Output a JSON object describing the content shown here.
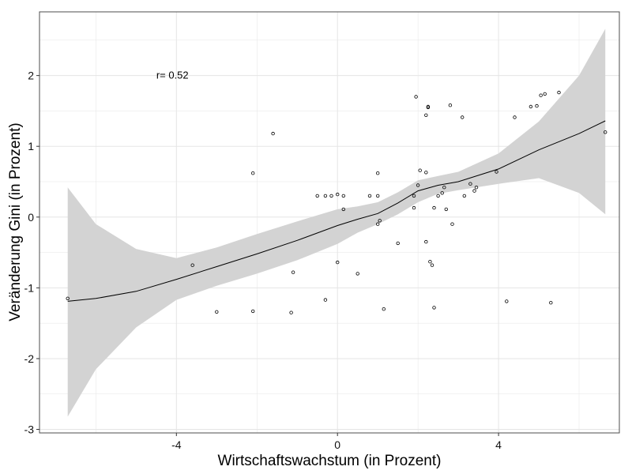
{
  "chart_data": {
    "type": "scatter",
    "xlabel": "Wirtschaftswachstum (in Prozent)",
    "ylabel": "Veränderung Gini (in Prozent)",
    "xlim": [
      -7.4,
      7.0
    ],
    "ylim": [
      -3.05,
      2.9
    ],
    "x_ticks": [
      -4,
      0,
      4
    ],
    "x_tick_labels": [
      "-4",
      "0",
      "4"
    ],
    "y_ticks": [
      -3,
      -2,
      -1,
      0,
      1,
      2
    ],
    "y_tick_labels": [
      "-3",
      "-2",
      "-1",
      "0",
      "1",
      "2"
    ],
    "grid": true,
    "annotation": {
      "text": "r= 0.52",
      "x": -4.5,
      "y": 2.0
    },
    "points": [
      {
        "x": -6.7,
        "y": -1.15
      },
      {
        "x": -3.6,
        "y": -0.68
      },
      {
        "x": -3.0,
        "y": -1.34
      },
      {
        "x": -2.1,
        "y": 0.62
      },
      {
        "x": -2.1,
        "y": -1.33
      },
      {
        "x": -1.6,
        "y": 1.18
      },
      {
        "x": -1.1,
        "y": -0.78
      },
      {
        "x": -1.15,
        "y": -1.35
      },
      {
        "x": -0.5,
        "y": 0.3
      },
      {
        "x": -0.3,
        "y": 0.3
      },
      {
        "x": -0.3,
        "y": -1.17
      },
      {
        "x": -0.15,
        "y": 0.3
      },
      {
        "x": 0.0,
        "y": 0.32
      },
      {
        "x": 0.0,
        "y": -0.64
      },
      {
        "x": 0.15,
        "y": 0.3
      },
      {
        "x": 0.15,
        "y": 0.11
      },
      {
        "x": 0.5,
        "y": -0.8
      },
      {
        "x": 0.8,
        "y": 0.3
      },
      {
        "x": 1.0,
        "y": 0.62
      },
      {
        "x": 1.0,
        "y": 0.3
      },
      {
        "x": 1.0,
        "y": -0.1
      },
      {
        "x": 1.05,
        "y": -0.05
      },
      {
        "x": 1.15,
        "y": -1.3
      },
      {
        "x": 1.5,
        "y": -0.37
      },
      {
        "x": 1.9,
        "y": 0.3
      },
      {
        "x": 1.9,
        "y": 0.13
      },
      {
        "x": 1.95,
        "y": 1.7
      },
      {
        "x": 2.0,
        "y": 0.45
      },
      {
        "x": 2.05,
        "y": 0.66
      },
      {
        "x": 2.2,
        "y": 1.44
      },
      {
        "x": 2.2,
        "y": 0.63
      },
      {
        "x": 2.25,
        "y": 1.56
      },
      {
        "x": 2.25,
        "y": 1.55
      },
      {
        "x": 2.2,
        "y": -0.35
      },
      {
        "x": 2.3,
        "y": -0.63
      },
      {
        "x": 2.35,
        "y": -0.68
      },
      {
        "x": 2.4,
        "y": 0.13
      },
      {
        "x": 2.4,
        "y": -1.28
      },
      {
        "x": 2.5,
        "y": 0.3
      },
      {
        "x": 2.6,
        "y": 0.34
      },
      {
        "x": 2.65,
        "y": 0.42
      },
      {
        "x": 2.7,
        "y": 0.11
      },
      {
        "x": 2.8,
        "y": 1.58
      },
      {
        "x": 2.85,
        "y": -0.1
      },
      {
        "x": 3.1,
        "y": 1.41
      },
      {
        "x": 3.15,
        "y": 0.3
      },
      {
        "x": 3.3,
        "y": 0.47
      },
      {
        "x": 3.4,
        "y": 0.37
      },
      {
        "x": 3.45,
        "y": 0.42
      },
      {
        "x": 3.95,
        "y": 0.64
      },
      {
        "x": 4.2,
        "y": -1.19
      },
      {
        "x": 4.4,
        "y": 1.41
      },
      {
        "x": 4.8,
        "y": 1.56
      },
      {
        "x": 4.95,
        "y": 1.57
      },
      {
        "x": 5.05,
        "y": 1.72
      },
      {
        "x": 5.15,
        "y": 1.74
      },
      {
        "x": 5.3,
        "y": -1.21
      },
      {
        "x": 5.5,
        "y": 1.76
      },
      {
        "x": 6.65,
        "y": 1.2
      }
    ],
    "smooth_fit": {
      "x": [
        -6.7,
        -6.0,
        -5.0,
        -4.0,
        -3.0,
        -2.0,
        -1.0,
        0.0,
        0.5,
        1.0,
        1.5,
        2.0,
        2.5,
        3.0,
        4.0,
        5.0,
        6.0,
        6.65
      ],
      "y": [
        -1.19,
        -1.15,
        -1.05,
        -0.88,
        -0.7,
        -0.52,
        -0.33,
        -0.12,
        -0.03,
        0.05,
        0.2,
        0.37,
        0.45,
        0.5,
        0.68,
        0.95,
        1.18,
        1.36
      ],
      "lower": [
        -2.82,
        -2.15,
        -1.56,
        -1.17,
        -0.97,
        -0.8,
        -0.61,
        -0.38,
        -0.22,
        -0.1,
        0.04,
        0.21,
        0.33,
        0.38,
        0.47,
        0.55,
        0.34,
        0.04
      ],
      "upper": [
        0.42,
        -0.1,
        -0.45,
        -0.58,
        -0.43,
        -0.24,
        -0.06,
        0.11,
        0.15,
        0.21,
        0.35,
        0.52,
        0.58,
        0.64,
        0.9,
        1.35,
        2.0,
        2.66
      ]
    },
    "colors": {
      "band": "#d3d3d3",
      "line": "#000000",
      "point": "#000000",
      "grid": "#e5e5e5",
      "panel_border": "#4d4d4d"
    }
  }
}
